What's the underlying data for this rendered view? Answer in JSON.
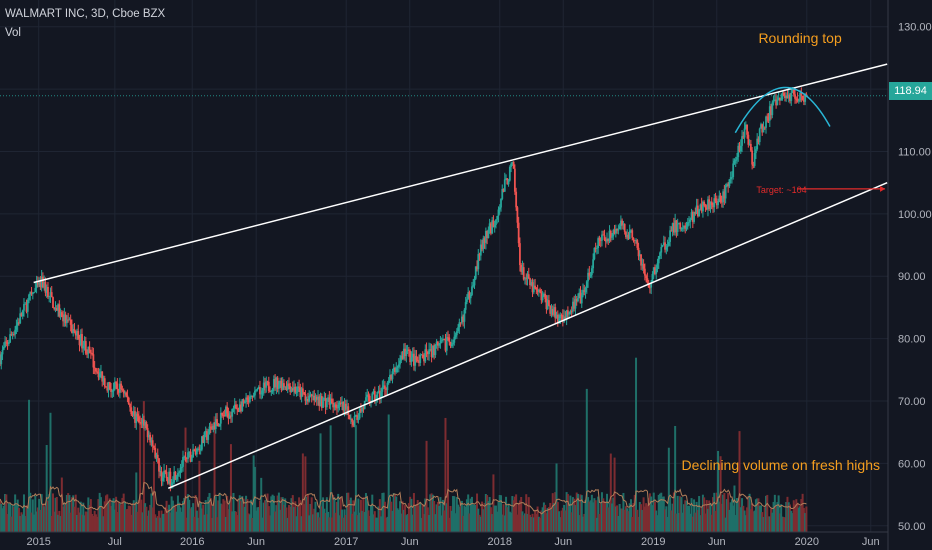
{
  "header": {
    "symbol_title": "WALMART INC, 3D, Cboe BZX",
    "volume_label": "Vol"
  },
  "colors": {
    "background": "#131722",
    "grid": "#1f2533",
    "up": "#26a69a",
    "down": "#ef5350",
    "up_volume": "#1f6f68",
    "down_volume": "#7d2c31",
    "trendline": "#ffffff",
    "arc": "#29b6d6",
    "annotation": "#f59e1f",
    "target": "#e32b2b",
    "axis_text": "#b2b5be",
    "axis_line": "#363a45",
    "volume_ma": "#b07d59"
  },
  "chart_data": {
    "type": "candlestick",
    "title": "WALMART INC, 3D, Cboe BZX",
    "current_price": "118.94",
    "ylim": [
      49,
      133
    ],
    "y_ticks": [
      "50.00",
      "60.00",
      "70.00",
      "80.00",
      "90.00",
      "100.00",
      "110.00",
      "120.00",
      "130.00"
    ],
    "x_ticks": [
      "2015",
      "Jul",
      "2016",
      "Jun",
      "2017",
      "Jun",
      "2018",
      "Jun",
      "2019",
      "Jun",
      "2020",
      "Jun"
    ],
    "price_path": [
      [
        "2014-10-01",
        77
      ],
      [
        "2014-11-15",
        83
      ],
      [
        "2014-12-15",
        87
      ],
      [
        "2015-01-10",
        89
      ],
      [
        "2015-02-10",
        85
      ],
      [
        "2015-03-15",
        82
      ],
      [
        "2015-04-20",
        79
      ],
      [
        "2015-05-20",
        75
      ],
      [
        "2015-06-20",
        72
      ],
      [
        "2015-07-20",
        72
      ],
      [
        "2015-08-20",
        67
      ],
      [
        "2015-09-20",
        65
      ],
      [
        "2015-10-20",
        58
      ],
      [
        "2015-11-10",
        57.5
      ],
      [
        "2015-12-10",
        60
      ],
      [
        "2016-01-10",
        62
      ],
      [
        "2016-02-20",
        66
      ],
      [
        "2016-03-20",
        68
      ],
      [
        "2016-04-20",
        69
      ],
      [
        "2016-05-20",
        70
      ],
      [
        "2016-06-20",
        72
      ],
      [
        "2016-07-20",
        73
      ],
      [
        "2016-08-20",
        72.5
      ],
      [
        "2016-09-20",
        71
      ],
      [
        "2016-10-20",
        70
      ],
      [
        "2016-11-20",
        70
      ],
      [
        "2016-12-20",
        69
      ],
      [
        "2017-01-20",
        67
      ],
      [
        "2017-02-20",
        70
      ],
      [
        "2017-03-20",
        71
      ],
      [
        "2017-04-20",
        74
      ],
      [
        "2017-05-20",
        78
      ],
      [
        "2017-06-20",
        76
      ],
      [
        "2017-07-20",
        78
      ],
      [
        "2017-08-20",
        79
      ],
      [
        "2017-09-20",
        80
      ],
      [
        "2017-10-20",
        87
      ],
      [
        "2017-11-20",
        95
      ],
      [
        "2017-12-20",
        99
      ],
      [
        "2018-01-10",
        104
      ],
      [
        "2018-02-01",
        108
      ],
      [
        "2018-02-20",
        91
      ],
      [
        "2018-03-20",
        88
      ],
      [
        "2018-04-20",
        86
      ],
      [
        "2018-05-20",
        83
      ],
      [
        "2018-06-20",
        85
      ],
      [
        "2018-07-20",
        87
      ],
      [
        "2018-08-20",
        95
      ],
      [
        "2018-09-20",
        97
      ],
      [
        "2018-10-15",
        98
      ],
      [
        "2018-11-20",
        96
      ],
      [
        "2018-12-20",
        88
      ],
      [
        "2019-01-20",
        94
      ],
      [
        "2019-02-20",
        98
      ],
      [
        "2019-03-20",
        98
      ],
      [
        "2019-04-20",
        101
      ],
      [
        "2019-05-20",
        102
      ],
      [
        "2019-06-20",
        103
      ],
      [
        "2019-07-20",
        110
      ],
      [
        "2019-08-10",
        114
      ],
      [
        "2019-08-25",
        108
      ],
      [
        "2019-09-10",
        113
      ],
      [
        "2019-10-10",
        117
      ],
      [
        "2019-11-10",
        119
      ],
      [
        "2019-12-10",
        119
      ],
      [
        "2019-12-31",
        118.94
      ]
    ],
    "annotations": {
      "rounding_top": "Rounding top",
      "target": "Target: ~104",
      "volume_note": "Declining volume on fresh highs"
    },
    "trendlines": [
      {
        "name": "upper",
        "from": [
          "2014-12-20",
          89
        ],
        "to": [
          "2020-07-10",
          124
        ]
      },
      {
        "name": "lower",
        "from": [
          "2015-11-05",
          56
        ],
        "to": [
          "2020-07-10",
          105
        ]
      }
    ],
    "target_level": 104
  }
}
